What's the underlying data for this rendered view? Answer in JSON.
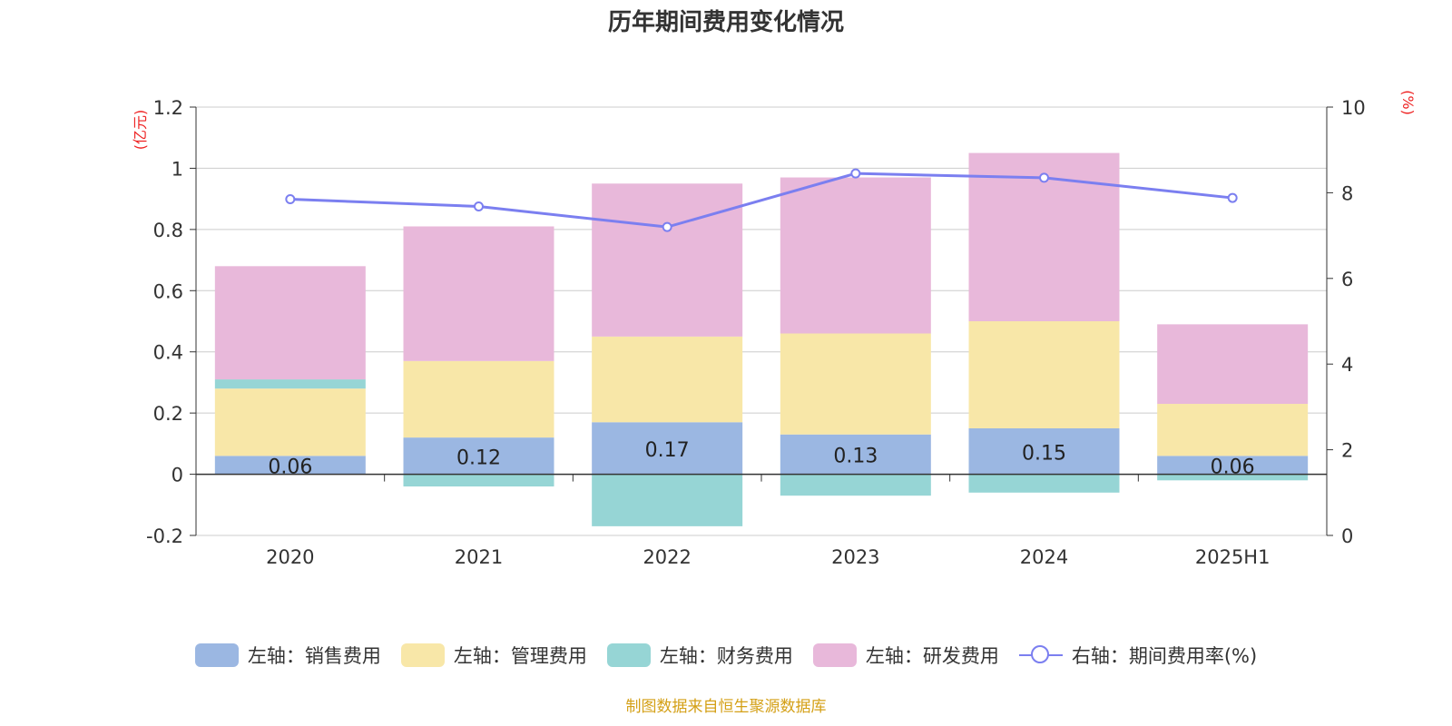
{
  "chart_data": {
    "type": "bar",
    "title": "历年期间费用变化情况",
    "categories": [
      "2020",
      "2021",
      "2022",
      "2023",
      "2024",
      "2025H1"
    ],
    "left_axis": {
      "unit": "(亿元)",
      "ylim": [
        -0.2,
        1.2
      ],
      "ticks": [
        "1.2",
        "1",
        "0.8",
        "0.6",
        "0.4",
        "0.2",
        "0",
        "-0.2"
      ]
    },
    "right_axis": {
      "unit": "(%)",
      "ylim": [
        0,
        10
      ],
      "ticks": [
        "10",
        "8",
        "6",
        "4",
        "2",
        "0"
      ]
    },
    "stacked": true,
    "series": [
      {
        "name": "左轴：销售费用",
        "axis": "left",
        "color": "#9bb7e2",
        "values": [
          0.06,
          0.12,
          0.17,
          0.13,
          0.15,
          0.06
        ],
        "labels": [
          "0.06",
          "0.12",
          "0.17",
          "0.13",
          "0.15",
          "0.06"
        ]
      },
      {
        "name": "左轴：管理费用",
        "axis": "left",
        "color": "#f8e7a8",
        "values": [
          0.22,
          0.25,
          0.28,
          0.33,
          0.35,
          0.17
        ]
      },
      {
        "name": "左轴：财务费用",
        "axis": "left",
        "color": "#96d5d5",
        "values": [
          0.03,
          -0.04,
          -0.17,
          -0.07,
          -0.06,
          -0.02
        ]
      },
      {
        "name": "左轴：研发费用",
        "axis": "left",
        "color": "#e8b8da",
        "values": [
          0.37,
          0.44,
          0.5,
          0.51,
          0.55,
          0.26
        ]
      },
      {
        "name": "右轴：期间费用率(%)",
        "axis": "right",
        "type": "line",
        "color": "#7b7ff0",
        "values": [
          7.85,
          7.68,
          7.2,
          8.45,
          8.35,
          7.88
        ]
      }
    ],
    "grid": true,
    "legend_position": "bottom"
  },
  "source": "制图数据来自恒生聚源数据库"
}
